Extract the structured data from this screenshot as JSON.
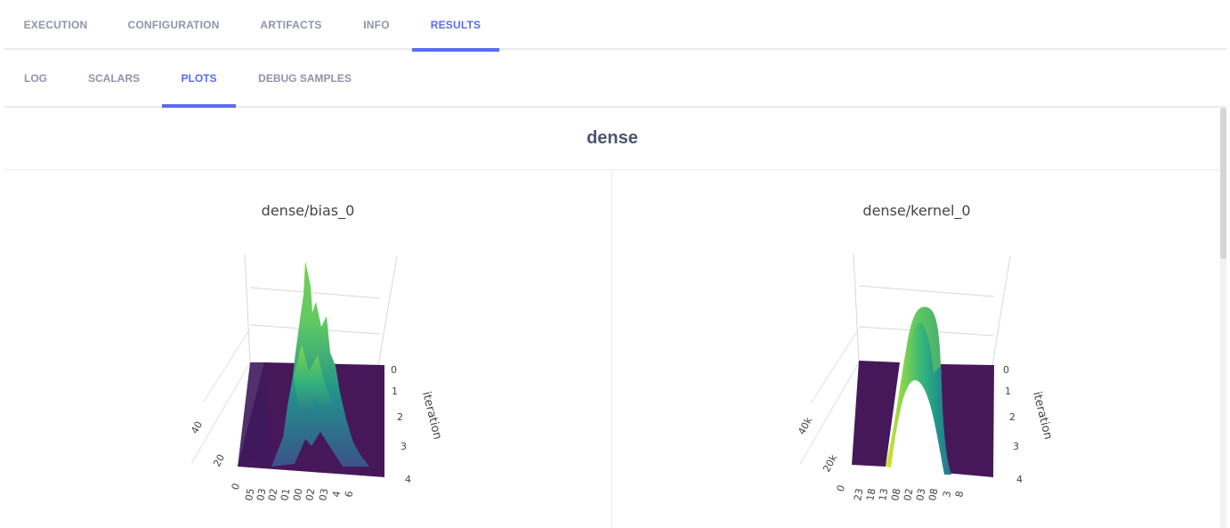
{
  "tabs": [
    {
      "label": "EXECUTION"
    },
    {
      "label": "CONFIGURATION"
    },
    {
      "label": "ARTIFACTS"
    },
    {
      "label": "INFO"
    },
    {
      "label": "RESULTS",
      "active": true
    }
  ],
  "subtabs": [
    {
      "label": "LOG"
    },
    {
      "label": "SCALARS"
    },
    {
      "label": "PLOTS",
      "active": true
    },
    {
      "label": "DEBUG SAMPLES"
    }
  ],
  "group": {
    "title": "dense"
  },
  "plots": [
    {
      "title": "dense/bias_0",
      "iteration_axis": {
        "label": "iteration",
        "ticks": [
          "0",
          "1",
          "2",
          "3",
          "4"
        ]
      },
      "count_axis_ticks": [
        "40",
        "20",
        "0"
      ],
      "value_axis_ticks": [
        "05",
        "03",
        "02",
        "01",
        "00",
        "02",
        "03",
        "4",
        "6"
      ]
    },
    {
      "title": "dense/kernel_0",
      "iteration_axis": {
        "label": "iteration",
        "ticks": [
          "0",
          "1",
          "2",
          "3",
          "4"
        ]
      },
      "count_axis_ticks": [
        "40k",
        "20k",
        "0"
      ],
      "value_axis_ticks": [
        "23",
        "18",
        "13",
        "08",
        "02",
        "03",
        "08",
        "3",
        "8"
      ]
    }
  ],
  "colors": {
    "accent": "#5a6cf0",
    "tab_inactive": "#8f94a8",
    "title": "#4d5575",
    "viridis_low": "#46185a",
    "viridis_high": "#d8e52a"
  }
}
